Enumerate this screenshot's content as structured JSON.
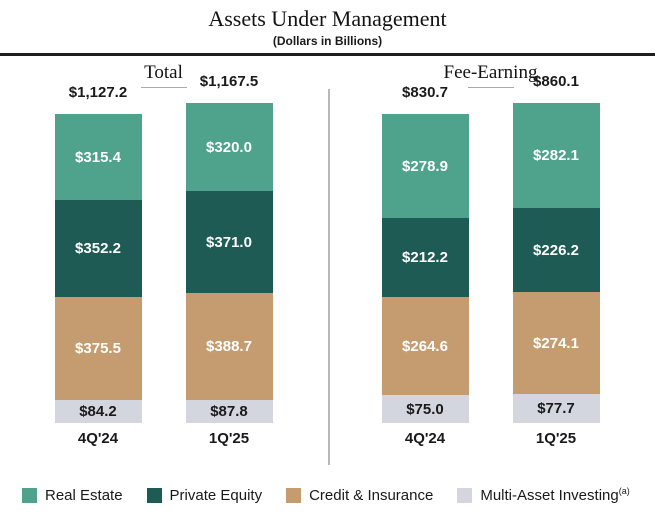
{
  "chart_data": {
    "type": "bar",
    "stacked": true,
    "title": "Assets Under Management",
    "subtitle": "(Dollars in Billions)",
    "unit_prefix": "$",
    "categories": [
      "Real Estate",
      "Private Equity",
      "Credit & Insurance",
      "Multi-Asset Investing"
    ],
    "segment_colors": [
      "#4fa28b",
      "#1e5b55",
      "#c59c6f",
      "#d3d6df"
    ],
    "segment_label_colors": [
      "#ffffff",
      "#ffffff",
      "#ffffff",
      "#1a1a1a"
    ],
    "groups": [
      {
        "label": "Total",
        "columns": [
          {
            "x": "4Q'24",
            "total": 1127.2,
            "values": [
              315.4,
              352.2,
              375.5,
              84.2
            ]
          },
          {
            "x": "1Q'25",
            "total": 1167.5,
            "values": [
              320.0,
              371.0,
              388.7,
              87.8
            ]
          }
        ]
      },
      {
        "label": "Fee-Earning",
        "columns": [
          {
            "x": "4Q'24",
            "total": 830.7,
            "values": [
              278.9,
              212.2,
              264.6,
              75.0
            ]
          },
          {
            "x": "1Q'25",
            "total": 860.1,
            "values": [
              282.1,
              226.2,
              274.1,
              77.7
            ]
          }
        ]
      }
    ],
    "legend": [
      {
        "label": "Real Estate",
        "sup": "",
        "color": "#4fa28b"
      },
      {
        "label": "Private Equity",
        "sup": "",
        "color": "#1e5b55"
      },
      {
        "label": "Credit & Insurance",
        "sup": "",
        "color": "#c59c6f"
      },
      {
        "label": "Multi-Asset Investing",
        "sup": "(a)",
        "color": "#d3d6df"
      }
    ],
    "layout": {
      "legend_position": "bottom",
      "grid": false,
      "value_labels": "inside"
    }
  }
}
